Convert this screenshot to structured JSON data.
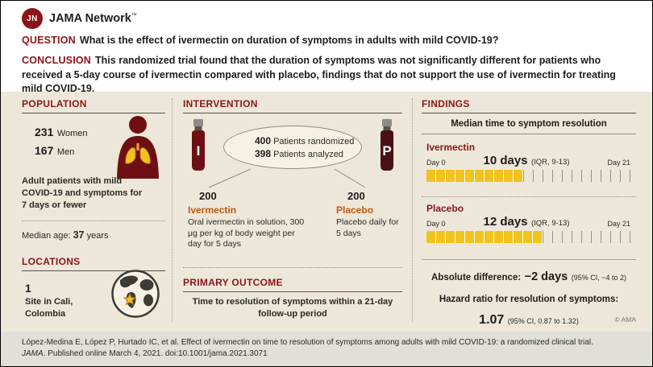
{
  "header": {
    "logo_monogram": "JN",
    "brand": "JAMA Network",
    "trademark": "™"
  },
  "summary": {
    "question_label": "QUESTION",
    "question_text": "What is the effect of ivermectin on duration of symptoms in adults with mild COVID-19?",
    "conclusion_label": "CONCLUSION",
    "conclusion_text": "This randomized trial found that the duration of symptoms was not significantly different for patients who received a 5-day course of ivermectin compared with placebo, findings that do not support the use of ivermectin for treating mild COVID-19."
  },
  "population": {
    "title": "POPULATION",
    "women_count": "231",
    "women_label": "Women",
    "men_count": "167",
    "men_label": "Men",
    "description": "Adult patients with mild COVID-19 and symptoms for 7 days or fewer",
    "median_age_label": "Median age:",
    "median_age_value": "37",
    "median_age_unit": "years"
  },
  "locations": {
    "title": "LOCATIONS",
    "count": "1",
    "description": "Site in Cali, Colombia"
  },
  "intervention": {
    "title": "INTERVENTION",
    "randomized_count": "400",
    "randomized_label": "Patients randomized",
    "analyzed_count": "398",
    "analyzed_label": "Patients analyzed",
    "arms": [
      {
        "n": "200",
        "name": "Ivermectin",
        "bottle_letter": "I",
        "description": "Oral ivermectin in solution, 300 μg per kg of body weight per day for 5 days"
      },
      {
        "n": "200",
        "name": "Placebo",
        "bottle_letter": "P",
        "description": "Placebo daily for 5 days"
      }
    ]
  },
  "primary_outcome": {
    "title": "PRIMARY OUTCOME",
    "text": "Time to resolution of symptoms within a 21-day follow-up period"
  },
  "findings": {
    "title": "FINDINGS",
    "subtitle": "Median time to symptom resolution",
    "timelines": [
      {
        "name": "Ivermectin",
        "value": "10 days",
        "iqr": "(IQR, 9-13)",
        "day_start": "Day 0",
        "day_end": "Day 21",
        "days": 10,
        "total": 21
      },
      {
        "name": "Placebo",
        "value": "12 days",
        "iqr": "(IQR, 9-13)",
        "day_start": "Day 0",
        "day_end": "Day 21",
        "days": 12,
        "total": 21
      }
    ],
    "absolute_difference_label": "Absolute difference:",
    "absolute_difference_value": "−2 days",
    "absolute_difference_ci": "(95% CI, −4 to 2)",
    "hazard_ratio_label": "Hazard ratio for resolution of symptoms:",
    "hazard_ratio_value": "1.07",
    "hazard_ratio_ci": "(95% CI, 0.87 to 1.32)",
    "copyright": "© AMA"
  },
  "footer": {
    "citation": "López-Medina E, López P, Hurtado IC, et al. Effect of ivermectin on time to resolution of symptoms among adults with mild COVID-19: a randomized clinical trial.",
    "journal": "JAMA",
    "publication_info": ". Published online March 4, 2021. doi:10.1001/jama.2021.3071"
  },
  "icons": {
    "logo": "jama-network-monogram",
    "population": "patient-with-lungs",
    "locations": "globe-with-star",
    "intervention": [
      "medicine-bottle-ivermectin",
      "medicine-bottle-placebo"
    ]
  },
  "colors": {
    "brand_red": "#8B1418",
    "accent_orange": "#BE5A0E",
    "bar_yellow": "#F2C31D",
    "panel_beige": "#EDE7DA",
    "footer_gray": "#E0DFDA"
  }
}
